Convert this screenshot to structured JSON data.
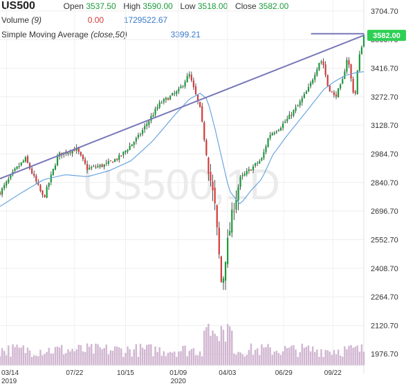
{
  "legend": {
    "symbol": "US500",
    "open_label": "Open",
    "open": "3537.50",
    "high_label": "High",
    "high": "3590.00",
    "low_label": "Low",
    "low": "3518.00",
    "close_label": "Close",
    "close": "3582.00",
    "volume_label": "Volume",
    "volume_period": "(9)",
    "volume_change": "0.00",
    "volume_value": "1729522.67",
    "sma_label": "Simple Moving Average",
    "sma_params": "(close,50)",
    "sma_value": "3399.21"
  },
  "watermark": "US500,1D",
  "colors": {
    "up": "#1a9a3a",
    "down": "#d23a3a",
    "sma": "#6aa5e0",
    "trendline": "#7676b8",
    "last_price_bg": "#2fcf55",
    "volume": "#c9a9c9"
  },
  "chart_data": {
    "type": "candlestick",
    "title": "US500",
    "y_ticks": [
      "3704.70",
      "3560.70",
      "3416.70",
      "3272.70",
      "3128.70",
      "2984.70",
      "2840.70",
      "2696.70",
      "2552.70",
      "2408.70",
      "2264.70",
      "2120.70",
      "1976.70"
    ],
    "ylim": [
      1920,
      3760
    ],
    "x_ticks": [
      {
        "label": "03/14",
        "sub": "2019"
      },
      {
        "label": "07/22",
        "sub": ""
      },
      {
        "label": "10/15",
        "sub": ""
      },
      {
        "label": "01/09",
        "sub": "2020"
      },
      {
        "label": "04/03",
        "sub": ""
      },
      {
        "label": "06/29",
        "sub": ""
      },
      {
        "label": "09/22",
        "sub": ""
      }
    ],
    "last_price": "3582.00",
    "last_price_value": 3582,
    "trendline": [
      [
        2860,
        0
      ],
      [
        3582,
        1
      ]
    ],
    "resistance_level": 3590,
    "close_path": [
      [
        0.0,
        2790
      ],
      [
        0.04,
        2900
      ],
      [
        0.07,
        2960
      ],
      [
        0.12,
        2760
      ],
      [
        0.16,
        2980
      ],
      [
        0.21,
        3010
      ],
      [
        0.24,
        2910
      ],
      [
        0.29,
        2930
      ],
      [
        0.33,
        2970
      ],
      [
        0.38,
        3070
      ],
      [
        0.44,
        3240
      ],
      [
        0.49,
        3300
      ],
      [
        0.52,
        3385
      ],
      [
        0.55,
        3210
      ],
      [
        0.57,
        2950
      ],
      [
        0.59,
        2730
      ],
      [
        0.6,
        2520
      ],
      [
        0.61,
        2300
      ],
      [
        0.62,
        2470
      ],
      [
        0.64,
        2700
      ],
      [
        0.66,
        2860
      ],
      [
        0.69,
        2910
      ],
      [
        0.72,
        2960
      ],
      [
        0.74,
        3080
      ],
      [
        0.77,
        3120
      ],
      [
        0.79,
        3160
      ],
      [
        0.82,
        3230
      ],
      [
        0.85,
        3320
      ],
      [
        0.88,
        3460
      ],
      [
        0.89,
        3430
      ],
      [
        0.9,
        3330
      ],
      [
        0.92,
        3270
      ],
      [
        0.94,
        3340
      ],
      [
        0.955,
        3480
      ],
      [
        0.965,
        3360
      ],
      [
        0.975,
        3260
      ],
      [
        0.985,
        3450
      ],
      [
        1.0,
        3582
      ]
    ],
    "sma_path": [
      [
        0.0,
        2720
      ],
      [
        0.06,
        2790
      ],
      [
        0.12,
        2855
      ],
      [
        0.18,
        2880
      ],
      [
        0.24,
        2870
      ],
      [
        0.3,
        2900
      ],
      [
        0.36,
        2950
      ],
      [
        0.42,
        3050
      ],
      [
        0.48,
        3180
      ],
      [
        0.52,
        3260
      ],
      [
        0.55,
        3290
      ],
      [
        0.57,
        3260
      ],
      [
        0.59,
        3120
      ],
      [
        0.61,
        2960
      ],
      [
        0.63,
        2800
      ],
      [
        0.66,
        2730
      ],
      [
        0.69,
        2800
      ],
      [
        0.72,
        2860
      ],
      [
        0.75,
        2980
      ],
      [
        0.79,
        3080
      ],
      [
        0.83,
        3170
      ],
      [
        0.86,
        3240
      ],
      [
        0.89,
        3310
      ],
      [
        0.92,
        3350
      ],
      [
        0.95,
        3380
      ],
      [
        0.98,
        3395
      ],
      [
        1.0,
        3399
      ]
    ],
    "volume_value": 1729522.67
  }
}
